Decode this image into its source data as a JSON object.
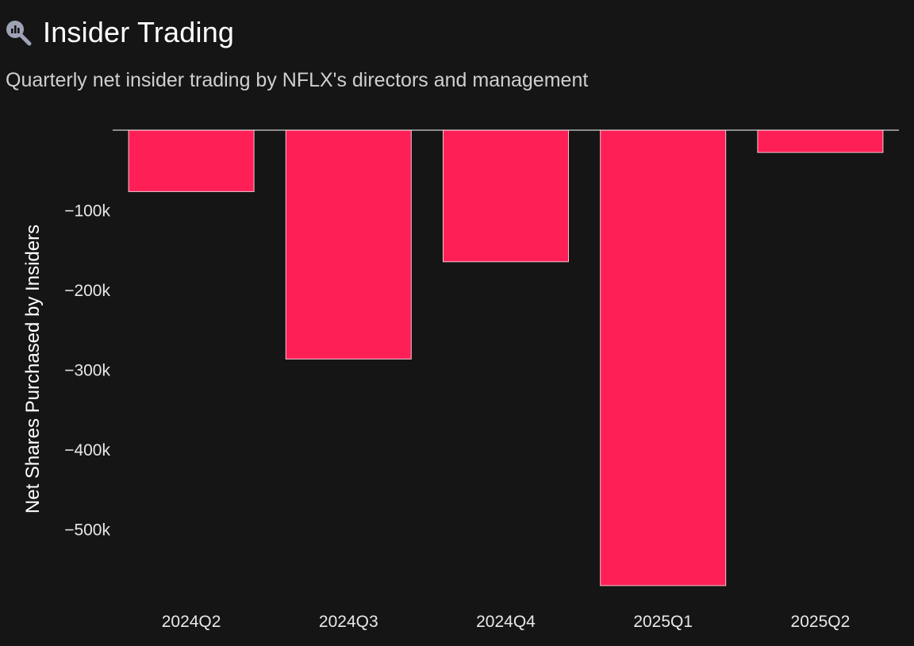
{
  "header": {
    "icon": "magnifier-chart-icon",
    "title": "Insider Trading",
    "subtitle": "Quarterly net insider trading by NFLX's directors and management"
  },
  "colors": {
    "background": "#151515",
    "bar_fill": "#ff1f57",
    "bar_stroke": "#f2c6cf",
    "zero_line": "#ffffff",
    "icon": "#9ea3b5"
  },
  "chart_data": {
    "type": "bar",
    "title": "",
    "xlabel": "",
    "ylabel": "Net Shares Purchased by Insiders",
    "categories": [
      "2024Q2",
      "2024Q3",
      "2024Q4",
      "2025Q1",
      "2025Q2"
    ],
    "values": [
      -77000,
      -287000,
      -165000,
      -571000,
      -28000
    ],
    "ylim": [
      -590000,
      0
    ],
    "yticks": [
      -100000,
      -200000,
      -300000,
      -400000,
      -500000
    ],
    "ytick_labels": [
      "−100k",
      "−200k",
      "−300k",
      "−400k",
      "−500k"
    ],
    "grid": false,
    "legend": "none"
  }
}
